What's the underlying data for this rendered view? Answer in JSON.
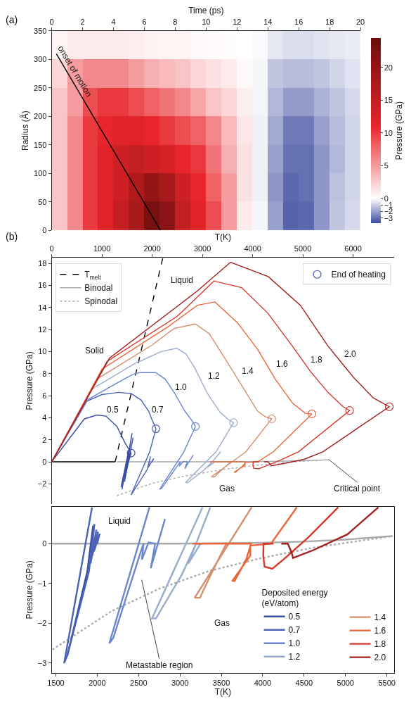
{
  "chart_data": [
    {
      "type": "heatmap",
      "xlabel": "Time (ps)",
      "ylabel": "Radius (Å)",
      "clabel": "Pressure (GPa)",
      "x": [
        0.5,
        1.5,
        2.5,
        3.5,
        4.5,
        5.5,
        6.5,
        7.5,
        8.5,
        9.5,
        10.5,
        11.5,
        12.5,
        13.5,
        14.5,
        15.5,
        16.5,
        17.5,
        18.5,
        19.5
      ],
      "y": [
        325,
        275,
        225,
        175,
        125,
        75,
        25
      ],
      "cells": [
        [
          0.5,
          1,
          1,
          1,
          1,
          0.8,
          0.6,
          0.5,
          0.5,
          0.3,
          0.2,
          0.1,
          0,
          -0.1,
          -0.5,
          -0.7,
          -0.7,
          -0.6,
          -0.5,
          -0.4
        ],
        [
          2,
          5,
          6,
          6,
          6,
          5,
          4,
          3.5,
          3,
          2,
          1.5,
          1,
          0.3,
          -0.2,
          -1.2,
          -1.4,
          -1.4,
          -1.2,
          -0.9,
          -0.6
        ],
        [
          3,
          5,
          9,
          10,
          10,
          9,
          8,
          7,
          6,
          4.5,
          3,
          2,
          0.8,
          -0.2,
          -1.5,
          -2.1,
          -2.1,
          -1.6,
          -1.2,
          -0.8
        ],
        [
          3,
          6,
          10,
          11,
          12,
          12,
          11,
          10,
          9,
          8,
          6,
          3.5,
          1.2,
          -0.3,
          -1.8,
          -2.8,
          -2.8,
          -2,
          -1.4,
          -0.9
        ],
        [
          3,
          6,
          10,
          12,
          14,
          15,
          14,
          13,
          11,
          10,
          7,
          4,
          1.5,
          -0.3,
          -2,
          -3,
          -3,
          -2.2,
          -1.5,
          -0.9
        ],
        [
          3,
          6,
          10,
          12,
          14,
          17,
          20,
          18,
          14,
          11,
          8,
          5,
          1.5,
          -0.3,
          -2.2,
          -3.2,
          -3,
          -2.2,
          -1.3,
          -0.9
        ],
        [
          3,
          6,
          10,
          12,
          15,
          18,
          23,
          21,
          15,
          12,
          9,
          5,
          1,
          -0.2,
          -2,
          -3.3,
          -3.2,
          -2.2,
          -1.2,
          -0.8
        ]
      ],
      "colors": [
        "#3b4c9e",
        "#ffffff",
        "#e8252a",
        "#6b0d0d"
      ],
      "clim": [
        -3.8,
        24.5
      ],
      "cticks": [
        -3,
        -2,
        -1,
        0,
        5,
        10,
        15,
        20
      ],
      "xlim": [
        0,
        20
      ],
      "xticks": [
        0,
        2,
        4,
        6,
        8,
        10,
        12,
        14,
        16,
        18,
        20
      ],
      "ylim": [
        0,
        350
      ],
      "yticks": [
        0,
        50,
        100,
        150,
        200,
        250,
        300,
        350
      ],
      "series": [
        {
          "type": "line",
          "color": "#000000",
          "x": [
            0.3,
            7.05
          ],
          "values": [
            310,
            0
          ]
        }
      ],
      "annotations": [
        "(a)",
        "onset of motion"
      ]
    },
    {
      "type": "line",
      "xlabel": "T(K)",
      "ylabel": "Pressure (GPa)",
      "xlim": [
        0,
        6820
      ],
      "xticks": [
        0,
        1000,
        2000,
        3000,
        4000,
        5000,
        6000
      ],
      "ylim": [
        -3.8,
        18.5
      ],
      "yticks": [
        -2,
        0,
        2,
        4,
        6,
        8,
        10,
        12,
        14,
        16,
        18
      ],
      "legend": "top left",
      "series": [
        {
          "name": "T$_{melt}$",
          "color": "#000000",
          "line_style": "dashed",
          "x": [
            1263,
            2212
          ],
          "values": [
            0,
            18.5
          ]
        },
        {
          "color": "#000000",
          "line_style": "solid",
          "x": [
            0,
            1263
          ],
          "values": [
            0,
            0
          ]
        },
        {
          "name": "Binodal",
          "color": "#aaaaaa",
          "line_style": "solid",
          "x": [
            1300,
            3000,
            4000,
            4500,
            5000,
            5520
          ],
          "values": [
            0,
            0,
            0.02,
            0.05,
            0.1,
            0.19
          ]
        },
        {
          "name": "Spinodal",
          "color": "#aaaaaa",
          "line_style": "dotted",
          "x": [
            1300,
            2000,
            2590,
            3400,
            4106,
            4800,
            5520
          ],
          "values": [
            -3.06,
            -1.95,
            -1.34,
            -0.7,
            -0.3,
            0,
            0.19
          ]
        },
        {
          "color": "#3b4ea3",
          "x": [
            0,
            650,
            900,
            1080,
            1300,
            1450,
            1580,
            1500,
            1380,
            1530,
            1400,
            1600,
            1450,
            1620
          ],
          "values": [
            0,
            3.9,
            4.25,
            4.15,
            3.2,
            1.8,
            0.8,
            -0.5,
            -2.3,
            1,
            -2.5,
            2.6,
            -1.8,
            2.2
          ]
        },
        {
          "color": "#4a63b5",
          "x": [
            0,
            700,
            1000,
            1330,
            1580,
            1780,
            1930,
            1990,
            2075,
            1950,
            1580,
            1900,
            1966,
            1920,
            2030,
            2000
          ],
          "values": [
            0,
            5.5,
            6.1,
            6.3,
            6.2,
            5.6,
            4.6,
            3.9,
            3,
            0.9,
            -3,
            -0.7,
            0.49,
            -0.5,
            0.3,
            0
          ]
        },
        {
          "color": "#6a86cc",
          "x": [
            0,
            700,
            1320,
            1600,
            1760,
            2070,
            2260,
            2450,
            2650,
            2800,
            2860,
            2631,
            2147,
            2194,
            2522,
            2560,
            2540,
            2620,
            2700,
            2647,
            2819
          ],
          "values": [
            0,
            5.6,
            7.2,
            7.9,
            8.1,
            8.1,
            7.5,
            6.2,
            4.6,
            3.7,
            3.2,
            0.91,
            -2.5,
            -2.37,
            -0.23,
            0,
            -0.4,
            0.03,
            0,
            -0.62,
            0.62
          ]
        },
        {
          "color": "#9aaccd",
          "x": [
            0,
            800,
            1650,
            2180,
            2490,
            2670,
            2850,
            3100,
            3350,
            3500,
            3620,
            3272,
            2662,
            2709,
            3022,
            3116,
            3194,
            3250,
            3100,
            3366
          ],
          "values": [
            0,
            6.6,
            8.9,
            10,
            10.3,
            9.8,
            8.5,
            6.2,
            4.5,
            3.9,
            3.55,
            0.91,
            -1.88,
            -1.88,
            -0.78,
            -0.36,
            0,
            0,
            -0.5,
            0.91
          ]
        },
        {
          "color": "#d4906e",
          "x": [
            0,
            900,
            2000,
            2440,
            2860,
            3140,
            3500,
            3800,
            4100,
            4250,
            4380,
            3866,
            3178,
            3241,
            3366,
            3553,
            3580
          ],
          "values": [
            0,
            7.5,
            10.6,
            12.1,
            12.5,
            11.6,
            9,
            6.8,
            4.6,
            4.1,
            3.9,
            0.91,
            -1.36,
            -1.36,
            -0.81,
            -0.03,
            0
          ]
        },
        {
          "color": "#ea6638",
          "x": [
            0,
            1000,
            2300,
            2900,
            3250,
            3700,
            4100,
            4450,
            4800,
            5050,
            5180,
            4412,
            4100,
            3850,
            3850,
            3631,
            3660,
            3800,
            3860,
            3500,
            3150
          ],
          "values": [
            0,
            8.4,
            12.2,
            14.2,
            14.5,
            12.6,
            10.2,
            7.5,
            5.3,
            4.4,
            4.35,
            0.91,
            0,
            -0.05,
            -0.3,
            -0.94,
            -0.94,
            -0.4,
            0,
            0,
            0
          ]
        },
        {
          "color": "#d6382c",
          "x": [
            0,
            1100,
            2500,
            3230,
            3780,
            4300,
            4790,
            5150,
            5500,
            5800,
            5930,
            4912,
            4553,
            4250,
            4116,
            4022,
            4006,
            4010,
            4130
          ],
          "values": [
            0,
            9.1,
            13.2,
            16.4,
            15.8,
            13.5,
            10.5,
            8.2,
            6.3,
            5,
            4.65,
            0.91,
            0.16,
            -0.4,
            -0.63,
            -0.58,
            -0.3,
            0,
            0
          ]
        },
        {
          "color": "#a11f1f",
          "x": [
            0,
            1150,
            2900,
            3560,
            4310,
            4950,
            5500,
            6000,
            6400,
            6720,
            5397,
            5022,
            4616,
            4366,
            4350,
            4303,
            4225
          ],
          "values": [
            0,
            9.4,
            15.5,
            18.1,
            16.8,
            14.2,
            10.5,
            7.7,
            5.8,
            5,
            0.91,
            0.23,
            -0.16,
            -0.36,
            -0.23,
            0,
            0
          ]
        },
        {
          "type": "scatter",
          "name": "End of heating",
          "color": "#777777",
          "marker": "circle",
          "colors": [
            "#3b4ea3",
            "#4a63b5",
            "#6a86cc",
            "#9aaccd",
            "#d4906e",
            "#ea6638",
            "#d6382c",
            "#a11f1f"
          ],
          "x": [
            1580,
            2075,
            2860,
            3620,
            4380,
            5180,
            5930,
            6720
          ],
          "values": [
            0.8,
            3,
            3.2,
            3.55,
            3.9,
            4.35,
            4.65,
            5
          ]
        }
      ],
      "annotations": [
        "(b)",
        "Solid",
        "Liquid",
        "Gas",
        "0.5",
        "0.7",
        "1.0",
        "1.2",
        "1.4",
        "1.6",
        "1.8",
        "2.0",
        {
          "text": "Critical point",
          "x": 5520,
          "y": 0.19
        }
      ]
    },
    {
      "type": "line",
      "xlabel": "T(K)",
      "ylabel": "Pressure (GPa)",
      "xlim": [
        1450,
        5590
      ],
      "xticks": [
        1500,
        2000,
        2500,
        3000,
        3500,
        4000,
        4500,
        5000,
        5500
      ],
      "ylim": [
        -3.25,
        0.93
      ],
      "yticks": [
        -3,
        -2,
        -1,
        0
      ],
      "legend": "bottom right",
      "legend_title": "Deposited energy\n(eV/atom)",
      "series": [
        {
          "color": "#aaaaaa",
          "line_style": "solid",
          "x": [
            1450,
            3000,
            4000,
            4500,
            5000,
            5570
          ],
          "values": [
            0,
            0,
            0.02,
            0.05,
            0.1,
            0.19
          ]
        },
        {
          "color": "#aaaaaa",
          "line_style": "dotted",
          "x": [
            1460,
            2178,
            2741,
            3366,
            3991,
            4616,
            5569
          ],
          "values": [
            -2.66,
            -1.69,
            -1.14,
            -0.68,
            -0.36,
            -0.1,
            0.19
          ]
        },
        {
          "name": "0.5",
          "color": "#3b4ea3",
          "x": [
            1640,
            1880,
            1950
          ],
          "values": [
            -2.8,
            -0.7,
            0.45
          ]
        },
        {
          "name": "0.7",
          "color": "#4a63b5",
          "x": [
            1937,
            1600,
            1640,
            1900,
            1966,
            1920,
            1990,
            1940,
            2010,
            1960,
            2030,
            2000
          ],
          "values": [
            0.91,
            -3,
            -2.8,
            -0.7,
            0.49,
            -0.5,
            0.35,
            -0.3,
            0.3,
            -0.2,
            0.25,
            0
          ]
        },
        {
          "name": "1.0",
          "color": "#6a86cc",
          "x": [
            2631,
            2147,
            2194,
            2522,
            2560,
            2540,
            2620,
            2700,
            2647,
            2819
          ],
          "values": [
            0.91,
            -2.5,
            -2.37,
            -0.23,
            0,
            -0.4,
            0.03,
            0,
            -0.62,
            0.62
          ]
        },
        {
          "name": "1.2",
          "color": "#9aaccd",
          "x": [
            3272,
            2662,
            2709,
            3022,
            3116,
            3194,
            3250,
            3100,
            3366
          ],
          "values": [
            0.91,
            -1.88,
            -1.88,
            -0.78,
            -0.36,
            0,
            0,
            -0.5,
            0.91
          ]
        },
        {
          "name": "1.4",
          "color": "#d4906e",
          "x": [
            3866,
            3178,
            3241,
            3366,
            3553,
            3580
          ],
          "values": [
            0.91,
            -1.36,
            -1.36,
            -0.81,
            -0.03,
            0
          ]
        },
        {
          "name": "1.6",
          "color": "#ea6638",
          "x": [
            4412,
            4100,
            3850,
            3850,
            3631,
            3660,
            3800,
            3860,
            3500,
            3150
          ],
          "values": [
            0.91,
            0,
            -0.05,
            -0.3,
            -0.94,
            -0.94,
            -0.4,
            0,
            0,
            0
          ]
        },
        {
          "name": "1.8",
          "color": "#d6382c",
          "x": [
            4912,
            4553,
            4250,
            4116,
            4022,
            4006,
            4010,
            4130
          ],
          "values": [
            0.91,
            0.16,
            -0.4,
            -0.63,
            -0.58,
            -0.3,
            0,
            0
          ]
        },
        {
          "name": "2.0",
          "color": "#a11f1f",
          "x": [
            5397,
            5022,
            4616,
            4366,
            4350,
            4303,
            4225
          ],
          "values": [
            0.91,
            0.23,
            -0.16,
            -0.36,
            -0.23,
            0,
            0
          ]
        }
      ],
      "annotations": [
        "Liquid",
        "Gas",
        "Metastable region"
      ]
    }
  ]
}
